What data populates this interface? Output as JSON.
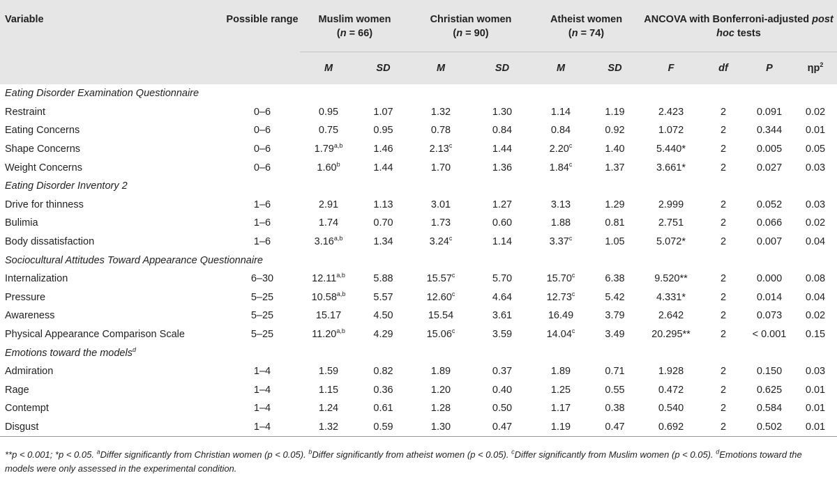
{
  "header": {
    "variable": "Variable",
    "possible_range": "Possible range",
    "muslim": "Muslim women",
    "muslim_n": "(n = 66)",
    "christian": "Christian women",
    "christian_n": "(n = 90)",
    "atheist": "Atheist women",
    "atheist_n": "(n = 74)",
    "ancova": "ANCOVA with Bonferroni-adjusted post hoc tests",
    "sub": [
      "M",
      "SD",
      "M",
      "SD",
      "M",
      "SD",
      "F",
      "df",
      "P",
      "ηp2"
    ]
  },
  "sections": [
    {
      "title": "Eating Disorder Examination Questionnaire",
      "rows": [
        {
          "variable": "Restraint",
          "range": "0–6",
          "m1": "0.95",
          "m1_sup": "",
          "sd1": "1.07",
          "m2": "1.32",
          "m2_sup": "",
          "sd2": "1.30",
          "m3": "1.14",
          "m3_sup": "",
          "sd3": "1.19",
          "f": "2.423",
          "df": "2",
          "p": "0.091",
          "eta": "0.02"
        },
        {
          "variable": "Eating Concerns",
          "range": "0–6",
          "m1": "0.75",
          "m1_sup": "",
          "sd1": "0.95",
          "m2": "0.78",
          "m2_sup": "",
          "sd2": "0.84",
          "m3": "0.84",
          "m3_sup": "",
          "sd3": "0.92",
          "f": "1.072",
          "df": "2",
          "p": "0.344",
          "eta": "0.01"
        },
        {
          "variable": "Shape Concerns",
          "range": "0–6",
          "m1": "1.79",
          "m1_sup": "a,b",
          "sd1": "1.46",
          "m2": "2.13",
          "m2_sup": "c",
          "sd2": "1.44",
          "m3": "2.20",
          "m3_sup": "c",
          "sd3": "1.40",
          "f": "5.440*",
          "df": "2",
          "p": "0.005",
          "eta": "0.05"
        },
        {
          "variable": "Weight Concerns",
          "range": "0–6",
          "m1": "1.60",
          "m1_sup": "b",
          "sd1": "1.44",
          "m2": "1.70",
          "m2_sup": "",
          "sd2": "1.36",
          "m3": "1.84",
          "m3_sup": "c",
          "sd3": "1.37",
          "f": "3.661*",
          "df": "2",
          "p": "0.027",
          "eta": "0.03"
        }
      ]
    },
    {
      "title": "Eating Disorder Inventory 2",
      "rows": [
        {
          "variable": "Drive for thinness",
          "range": "1–6",
          "m1": "2.91",
          "m1_sup": "",
          "sd1": "1.13",
          "m2": "3.01",
          "m2_sup": "",
          "sd2": "1.27",
          "m3": "3.13",
          "m3_sup": "",
          "sd3": "1.29",
          "f": "2.999",
          "df": "2",
          "p": "0.052",
          "eta": "0.03"
        },
        {
          "variable": "Bulimia",
          "range": "1–6",
          "m1": "1.74",
          "m1_sup": "",
          "sd1": "0.70",
          "m2": "1.73",
          "m2_sup": "",
          "sd2": "0.60",
          "m3": "1.88",
          "m3_sup": "",
          "sd3": "0.81",
          "f": "2.751",
          "df": "2",
          "p": "0.066",
          "eta": "0.02"
        },
        {
          "variable": "Body dissatisfaction",
          "range": "1–6",
          "m1": "3.16",
          "m1_sup": "a,b",
          "sd1": "1.34",
          "m2": "3.24",
          "m2_sup": "c",
          "sd2": "1.14",
          "m3": "3.37",
          "m3_sup": "c",
          "sd3": "1.05",
          "f": "5.072*",
          "df": "2",
          "p": "0.007",
          "eta": "0.04"
        }
      ]
    },
    {
      "title": "Sociocultural Attitudes Toward Appearance Questionnaire",
      "rows": [
        {
          "variable": "Internalization",
          "range": "6–30",
          "m1": "12.11",
          "m1_sup": "a,b",
          "sd1": "5.88",
          "m2": "15.57",
          "m2_sup": "c",
          "sd2": "5.70",
          "m3": "15.70",
          "m3_sup": "c",
          "sd3": "6.38",
          "f": "9.520**",
          "df": "2",
          "p": "0.000",
          "eta": "0.08"
        },
        {
          "variable": "Pressure",
          "range": "5–25",
          "m1": "10.58",
          "m1_sup": "a,b",
          "sd1": "5.57",
          "m2": "12.60",
          "m2_sup": "c",
          "sd2": "4.64",
          "m3": "12.73",
          "m3_sup": "c",
          "sd3": "5.42",
          "f": "4.331*",
          "df": "2",
          "p": "0.014",
          "eta": "0.04"
        },
        {
          "variable": "Awareness",
          "range": "5–25",
          "m1": "15.17",
          "m1_sup": "",
          "sd1": "4.50",
          "m2": "15.54",
          "m2_sup": "",
          "sd2": "3.61",
          "m3": "16.49",
          "m3_sup": "",
          "sd3": "3.79",
          "f": "2.642",
          "df": "2",
          "p": "0.073",
          "eta": "0.02"
        },
        {
          "variable": "Physical Appearance Comparison Scale",
          "range": "5–25",
          "m1": "11.20",
          "m1_sup": "a,b",
          "sd1": "4.29",
          "m2": "15.06",
          "m2_sup": "c",
          "sd2": "3.59",
          "m3": "14.04",
          "m3_sup": "c",
          "sd3": "3.49",
          "f": "20.295**",
          "df": "2",
          "p": "< 0.001",
          "eta": "0.15"
        }
      ]
    },
    {
      "title": "Emotions toward the models",
      "title_sup": "d",
      "rows": [
        {
          "variable": "Admiration",
          "range": "1–4",
          "m1": "1.59",
          "m1_sup": "",
          "sd1": "0.82",
          "m2": "1.89",
          "m2_sup": "",
          "sd2": "0.37",
          "m3": "1.89",
          "m3_sup": "",
          "sd3": "0.71",
          "f": "1.928",
          "df": "2",
          "p": "0.150",
          "eta": "0.03"
        },
        {
          "variable": "Rage",
          "range": "1–4",
          "m1": "1.15",
          "m1_sup": "",
          "sd1": "0.36",
          "m2": "1.20",
          "m2_sup": "",
          "sd2": "0.40",
          "m3": "1.25",
          "m3_sup": "",
          "sd3": "0.55",
          "f": "0.472",
          "df": "2",
          "p": "0.625",
          "eta": "0.01"
        },
        {
          "variable": "Contempt",
          "range": "1–4",
          "m1": "1.24",
          "m1_sup": "",
          "sd1": "0.61",
          "m2": "1.28",
          "m2_sup": "",
          "sd2": "0.50",
          "m3": "1.17",
          "m3_sup": "",
          "sd3": "0.38",
          "f": "0.540",
          "df": "2",
          "p": "0.584",
          "eta": "0.01"
        },
        {
          "variable": "Disgust",
          "range": "1–4",
          "m1": "1.32",
          "m1_sup": "",
          "sd1": "0.59",
          "m2": "1.30",
          "m2_sup": "",
          "sd2": "0.47",
          "m3": "1.19",
          "m3_sup": "",
          "sd3": "0.47",
          "f": "0.692",
          "df": "2",
          "p": "0.502",
          "eta": "0.01"
        }
      ]
    }
  ],
  "note": "**p < 0.001; *p < 0.05. aDiffer significantly from Christian women (p < 0.05). bDiffer significantly from atheist women (p < 0.05). cDiffer significantly from Muslim women (p < 0.05). dEmotions toward the models were only assessed in the experimental condition."
}
